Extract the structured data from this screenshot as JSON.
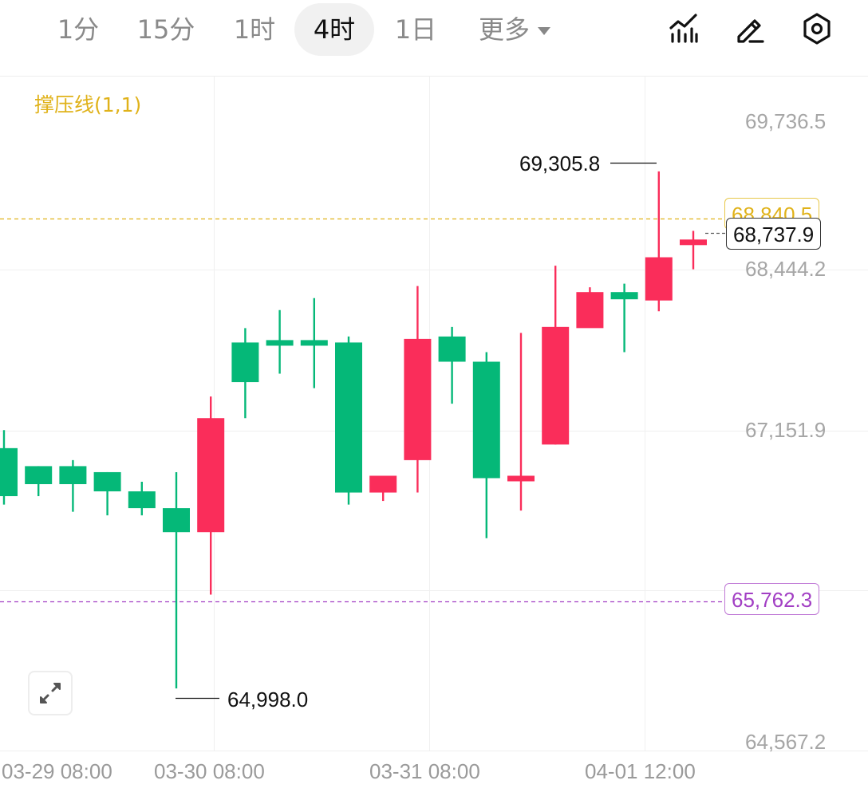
{
  "toolbar": {
    "tabs": [
      {
        "label": "1分",
        "active": false
      },
      {
        "label": "15分",
        "active": false
      },
      {
        "label": "1时",
        "active": false
      },
      {
        "label": "4时",
        "active": true
      },
      {
        "label": "1日",
        "active": false
      },
      {
        "label": "更多",
        "active": false
      }
    ],
    "icons": [
      "indicator-chart-icon",
      "pencil-icon",
      "settings-icon"
    ]
  },
  "indicator": {
    "label": "撑压线(1,1)"
  },
  "price_axis": {
    "labels": [
      "69,736.5",
      "68,444.2",
      "67,151.9",
      "64,567.2"
    ]
  },
  "resistance": {
    "label": "68,840.5",
    "color": "#e0b21a"
  },
  "current_price": {
    "label": "68,737.9"
  },
  "support": {
    "label": "65,762.3",
    "color": "#a23fc4"
  },
  "extremes": {
    "high": {
      "label": "69,305.8"
    },
    "low": {
      "label": "64,998.0"
    }
  },
  "time_axis": {
    "labels": [
      "03-29 08:00",
      "03-30 08:00",
      "03-31 08:00",
      "04-01 12:00"
    ]
  },
  "colors": {
    "up": "#fa2d5a",
    "down": "#05b878",
    "grid": "#f0f0f0"
  },
  "chart_data": {
    "type": "candlestick",
    "yrange": [
      64567.2,
      69736.5
    ],
    "candles": [
      {
        "o": 67000,
        "h": 67150,
        "l": 66530,
        "c": 66600
      },
      {
        "o": 66850,
        "h": 66850,
        "l": 66600,
        "c": 66700
      },
      {
        "o": 66850,
        "h": 66900,
        "l": 66470,
        "c": 66700
      },
      {
        "o": 66800,
        "h": 66800,
        "l": 66440,
        "c": 66640
      },
      {
        "o": 66640,
        "h": 66720,
        "l": 66440,
        "c": 66500
      },
      {
        "o": 66500,
        "h": 66800,
        "l": 64998,
        "c": 66300
      },
      {
        "o": 66300,
        "h": 67430,
        "l": 65780,
        "c": 67250
      },
      {
        "o": 67880,
        "h": 68000,
        "l": 67250,
        "c": 67550
      },
      {
        "o": 67900,
        "h": 68150,
        "l": 67620,
        "c": 67880
      },
      {
        "o": 67900,
        "h": 68250,
        "l": 67500,
        "c": 67880
      },
      {
        "o": 67880,
        "h": 67930,
        "l": 66530,
        "c": 66630
      },
      {
        "o": 66630,
        "h": 66760,
        "l": 66560,
        "c": 66770
      },
      {
        "o": 66900,
        "h": 68350,
        "l": 66630,
        "c": 67910
      },
      {
        "o": 67930,
        "h": 68010,
        "l": 67370,
        "c": 67720
      },
      {
        "o": 67720,
        "h": 67800,
        "l": 66250,
        "c": 66750
      },
      {
        "o": 66740,
        "h": 67960,
        "l": 66480,
        "c": 66770
      },
      {
        "o": 67030,
        "h": 68520,
        "l": 67030,
        "c": 68010
      },
      {
        "o": 68000,
        "h": 68340,
        "l": 68010,
        "c": 68300
      },
      {
        "o": 68300,
        "h": 68370,
        "l": 67800,
        "c": 68240
      },
      {
        "o": 68230,
        "h": 69305.8,
        "l": 68140,
        "c": 68590
      },
      {
        "o": 68737.9,
        "h": 68810,
        "l": 68490,
        "c": 68737.9
      }
    ]
  }
}
